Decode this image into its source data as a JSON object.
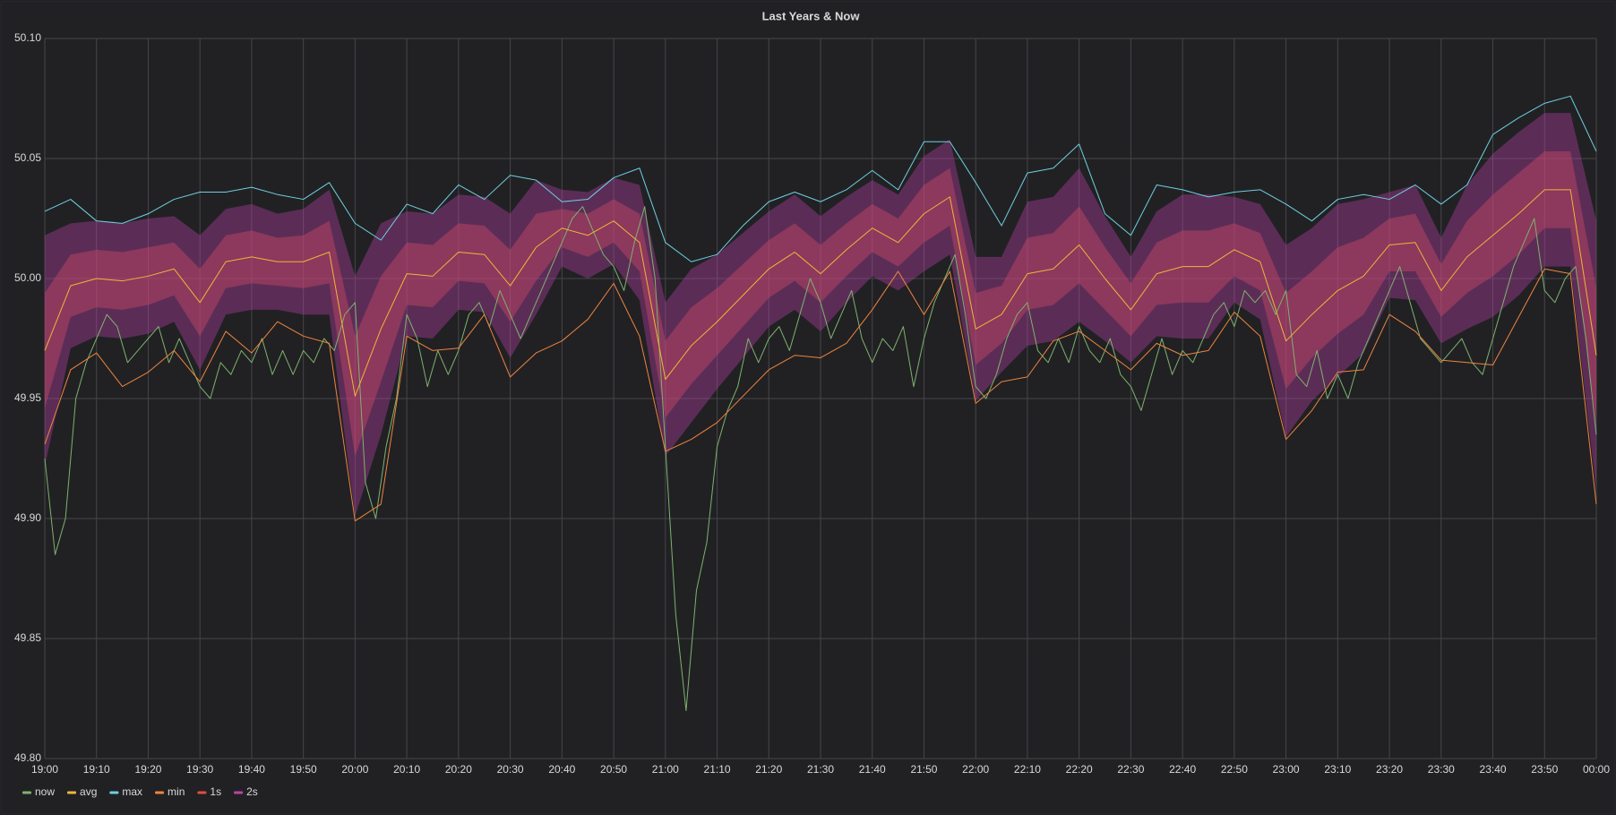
{
  "chart_data": {
    "type": "line",
    "title": "Last Years & Now",
    "xlim": [
      "19:00",
      "00:00"
    ],
    "xticks": [
      "19:00",
      "19:10",
      "19:20",
      "19:30",
      "19:40",
      "19:50",
      "20:00",
      "20:10",
      "20:20",
      "20:30",
      "20:40",
      "20:50",
      "21:00",
      "21:10",
      "21:20",
      "21:30",
      "21:40",
      "21:50",
      "22:00",
      "22:10",
      "22:20",
      "22:30",
      "22:40",
      "22:50",
      "23:00",
      "23:10",
      "23:20",
      "23:30",
      "23:40",
      "23:50",
      "00:00"
    ],
    "ylim": [
      49.8,
      50.1
    ],
    "yticks": [
      {
        "value": 49.8,
        "label": "49.80"
      },
      49.85,
      {
        "value": 49.9,
        "label": "49.90"
      },
      49.95,
      {
        "value": 50.0,
        "label": "50.00"
      },
      50.05,
      {
        "value": 50.1,
        "label": "50.10"
      }
    ],
    "grid": true,
    "legend": "bottom-left",
    "x": [
      "19:00",
      "19:05",
      "19:10",
      "19:15",
      "19:20",
      "19:25",
      "19:30",
      "19:35",
      "19:40",
      "19:45",
      "19:50",
      "19:55",
      "20:00",
      "20:05",
      "20:10",
      "20:15",
      "20:20",
      "20:25",
      "20:30",
      "20:35",
      "20:40",
      "20:45",
      "20:50",
      "20:55",
      "21:00",
      "21:05",
      "21:10",
      "21:15",
      "21:20",
      "21:25",
      "21:30",
      "21:35",
      "21:40",
      "21:45",
      "21:50",
      "21:55",
      "22:00",
      "22:05",
      "22:10",
      "22:15",
      "22:20",
      "22:25",
      "22:30",
      "22:35",
      "22:40",
      "22:45",
      "22:50",
      "22:55",
      "23:00",
      "23:05",
      "23:10",
      "23:15",
      "23:20",
      "23:25",
      "23:30",
      "23:35",
      "23:40",
      "23:45",
      "23:50",
      "23:55",
      "00:00"
    ],
    "series": [
      {
        "name": "now",
        "color": "#7eb26d",
        "x": [
          "19:00",
          "19:02",
          "19:04",
          "19:06",
          "19:08",
          "19:10",
          "19:12",
          "19:14",
          "19:16",
          "19:18",
          "19:20",
          "19:22",
          "19:24",
          "19:26",
          "19:28",
          "19:30",
          "19:32",
          "19:34",
          "19:36",
          "19:38",
          "19:40",
          "19:42",
          "19:44",
          "19:46",
          "19:48",
          "19:50",
          "19:52",
          "19:54",
          "19:56",
          "19:58",
          "20:00",
          "20:02",
          "20:04",
          "20:06",
          "20:08",
          "20:10",
          "20:12",
          "20:14",
          "20:16",
          "20:18",
          "20:20",
          "20:22",
          "20:24",
          "20:26",
          "20:28",
          "20:30",
          "20:32",
          "20:34",
          "20:36",
          "20:38",
          "20:40",
          "20:42",
          "20:44",
          "20:46",
          "20:48",
          "20:50",
          "20:52",
          "20:54",
          "20:56",
          "20:58",
          "21:00",
          "21:02",
          "21:04",
          "21:06",
          "21:08",
          "21:10",
          "21:12",
          "21:14",
          "21:16",
          "21:18",
          "21:20",
          "21:22",
          "21:24",
          "21:26",
          "21:28",
          "21:30",
          "21:32",
          "21:34",
          "21:36",
          "21:38",
          "21:40",
          "21:42",
          "21:44",
          "21:46",
          "21:48",
          "21:50",
          "21:52",
          "21:54",
          "21:56",
          "21:58",
          "22:00",
          "22:02",
          "22:04",
          "22:06",
          "22:08",
          "22:10",
          "22:12",
          "22:14",
          "22:16",
          "22:18",
          "22:20",
          "22:22",
          "22:24",
          "22:26",
          "22:28",
          "22:30",
          "22:32",
          "22:34",
          "22:36",
          "22:38",
          "22:40",
          "22:42",
          "22:44",
          "22:46",
          "22:48",
          "22:50",
          "22:52",
          "22:54",
          "22:56",
          "22:58",
          "23:00",
          "23:02",
          "23:04",
          "23:06",
          "23:08",
          "23:10",
          "23:12",
          "23:14",
          "23:16",
          "23:18",
          "23:20",
          "23:22",
          "23:24",
          "23:26",
          "23:28",
          "23:30",
          "23:32",
          "23:34",
          "23:36",
          "23:38",
          "23:40",
          "23:42",
          "23:44",
          "23:46",
          "23:48",
          "23:50",
          "23:52",
          "23:54",
          "23:56",
          "23:58",
          "00:00"
        ],
        "values": [
          49.925,
          49.885,
          49.9,
          49.95,
          49.965,
          49.975,
          49.985,
          49.98,
          49.965,
          49.97,
          49.975,
          49.98,
          49.965,
          49.975,
          49.965,
          49.955,
          49.95,
          49.965,
          49.96,
          49.97,
          49.965,
          49.975,
          49.96,
          49.97,
          49.96,
          49.97,
          49.965,
          49.975,
          49.97,
          49.985,
          49.99,
          49.915,
          49.9,
          49.93,
          49.95,
          49.985,
          49.975,
          49.955,
          49.97,
          49.96,
          49.97,
          49.985,
          49.99,
          49.98,
          49.995,
          49.985,
          49.975,
          49.985,
          49.995,
          50.005,
          50.015,
          50.025,
          50.03,
          50.02,
          50.01,
          50.005,
          49.995,
          50.015,
          50.03,
          50.0,
          49.93,
          49.86,
          49.82,
          49.87,
          49.89,
          49.93,
          49.945,
          49.955,
          49.975,
          49.965,
          49.975,
          49.98,
          49.97,
          49.985,
          50.0,
          49.99,
          49.975,
          49.985,
          49.995,
          49.975,
          49.965,
          49.975,
          49.97,
          49.98,
          49.955,
          49.975,
          49.99,
          50.0,
          50.01,
          49.985,
          49.955,
          49.95,
          49.96,
          49.975,
          49.985,
          49.99,
          49.97,
          49.965,
          49.975,
          49.965,
          49.98,
          49.97,
          49.965,
          49.975,
          49.96,
          49.955,
          49.945,
          49.96,
          49.975,
          49.96,
          49.97,
          49.965,
          49.975,
          49.985,
          49.99,
          49.98,
          49.995,
          49.99,
          49.995,
          49.985,
          49.995,
          49.96,
          49.955,
          49.97,
          49.95,
          49.96,
          49.95,
          49.965,
          49.975,
          49.985,
          49.995,
          50.005,
          49.99,
          49.975,
          49.97,
          49.965,
          49.97,
          49.975,
          49.965,
          49.96,
          49.975,
          49.99,
          50.005,
          50.015,
          50.025,
          49.995,
          49.99,
          50.0,
          50.005,
          49.975,
          49.935
        ]
      },
      {
        "name": "avg",
        "color": "#eab839",
        "values": [
          49.97,
          49.997,
          50.0,
          49.999,
          50.001,
          50.004,
          49.99,
          50.007,
          50.009,
          50.007,
          50.007,
          50.011,
          49.951,
          49.979,
          50.002,
          50.001,
          50.011,
          50.01,
          49.997,
          50.013,
          50.021,
          50.018,
          50.024,
          50.015,
          49.958,
          49.972,
          49.982,
          49.993,
          50.004,
          50.011,
          50.002,
          50.012,
          50.021,
          50.015,
          50.027,
          50.034,
          49.979,
          49.985,
          50.002,
          50.004,
          50.014,
          50.0,
          49.987,
          50.002,
          50.005,
          50.005,
          50.012,
          50.007,
          49.974,
          49.985,
          49.995,
          50.001,
          50.014,
          50.015,
          49.995,
          50.009,
          50.018,
          50.027,
          50.037,
          50.037,
          49.968
        ]
      },
      {
        "name": "max",
        "color": "#6ed0e0",
        "values": [
          50.028,
          50.033,
          50.024,
          50.023,
          50.027,
          50.033,
          50.036,
          50.036,
          50.038,
          50.035,
          50.033,
          50.04,
          50.023,
          50.016,
          50.031,
          50.027,
          50.039,
          50.033,
          50.043,
          50.041,
          50.032,
          50.033,
          50.042,
          50.046,
          50.015,
          50.007,
          50.01,
          50.022,
          50.032,
          50.036,
          50.032,
          50.037,
          50.045,
          50.037,
          50.057,
          50.057,
          50.04,
          50.022,
          50.044,
          50.046,
          50.056,
          50.027,
          50.018,
          50.039,
          50.037,
          50.034,
          50.036,
          50.037,
          50.031,
          50.024,
          50.033,
          50.035,
          50.033,
          50.039,
          50.031,
          50.039,
          50.06,
          50.067,
          50.073,
          50.076,
          50.053
        ]
      },
      {
        "name": "min",
        "color": "#ef843c",
        "values": [
          49.931,
          49.962,
          49.969,
          49.955,
          49.961,
          49.97,
          49.957,
          49.978,
          49.969,
          49.982,
          49.976,
          49.973,
          49.899,
          49.906,
          49.976,
          49.97,
          49.971,
          49.985,
          49.959,
          49.969,
          49.974,
          49.983,
          49.998,
          49.976,
          49.928,
          49.933,
          49.94,
          49.951,
          49.962,
          49.968,
          49.967,
          49.973,
          49.987,
          50.003,
          49.985,
          50.003,
          49.948,
          49.957,
          49.959,
          49.974,
          49.978,
          49.97,
          49.962,
          49.973,
          49.968,
          49.97,
          49.986,
          49.976,
          49.933,
          49.945,
          49.961,
          49.962,
          49.985,
          49.978,
          49.966,
          49.965,
          49.964,
          49.984,
          50.004,
          50.002,
          49.906
        ]
      },
      {
        "name": "1s",
        "color": "#e24d42",
        "upper": [
          49.994,
          50.01,
          50.012,
          50.011,
          50.013,
          50.015,
          50.004,
          50.018,
          50.02,
          50.017,
          50.018,
          50.024,
          49.976,
          50.001,
          50.015,
          50.014,
          50.023,
          50.022,
          50.012,
          50.027,
          50.029,
          50.027,
          50.033,
          50.027,
          49.974,
          49.988,
          49.996,
          50.006,
          50.016,
          50.023,
          50.014,
          50.023,
          50.031,
          50.025,
          50.039,
          50.046,
          49.994,
          49.997,
          50.017,
          50.019,
          50.03,
          50.013,
          49.998,
          50.015,
          50.02,
          50.02,
          50.023,
          50.019,
          49.994,
          50.003,
          50.013,
          50.017,
          50.025,
          50.027,
          50.006,
          50.024,
          50.035,
          50.044,
          50.053,
          50.053,
          49.996
        ],
        "lower": [
          49.946,
          49.984,
          49.988,
          49.987,
          49.989,
          49.993,
          49.976,
          49.996,
          49.998,
          49.997,
          49.996,
          49.998,
          49.926,
          49.957,
          49.989,
          49.988,
          49.999,
          49.998,
          49.982,
          49.999,
          50.013,
          50.009,
          50.015,
          50.003,
          49.942,
          49.956,
          49.968,
          49.98,
          49.992,
          49.999,
          49.99,
          50.001,
          50.011,
          50.005,
          50.015,
          50.022,
          49.964,
          49.973,
          49.987,
          49.989,
          49.998,
          49.987,
          49.976,
          49.989,
          49.99,
          49.99,
          50.001,
          49.995,
          49.954,
          49.967,
          49.977,
          49.985,
          50.003,
          50.003,
          49.984,
          49.994,
          50.001,
          50.01,
          50.021,
          50.021,
          49.94
        ]
      },
      {
        "name": "2s",
        "color": "#ba43a9",
        "upper": [
          50.018,
          50.023,
          50.024,
          50.023,
          50.025,
          50.026,
          50.018,
          50.029,
          50.031,
          50.027,
          50.029,
          50.037,
          50.001,
          50.023,
          50.028,
          50.027,
          50.035,
          50.034,
          50.027,
          50.041,
          50.037,
          50.036,
          50.042,
          50.039,
          49.99,
          50.004,
          50.01,
          50.019,
          50.028,
          50.035,
          50.026,
          50.034,
          50.041,
          50.035,
          50.051,
          50.058,
          50.009,
          50.009,
          50.032,
          50.034,
          50.046,
          50.026,
          50.009,
          50.028,
          50.035,
          50.035,
          50.034,
          50.031,
          50.014,
          50.021,
          50.031,
          50.033,
          50.036,
          50.039,
          50.017,
          50.039,
          50.052,
          50.061,
          50.069,
          50.069,
          50.024
        ],
        "lower": [
          49.922,
          49.971,
          49.976,
          49.975,
          49.977,
          49.982,
          49.962,
          49.985,
          49.987,
          49.987,
          49.985,
          49.985,
          49.901,
          49.935,
          49.976,
          49.975,
          49.987,
          49.986,
          49.967,
          49.985,
          50.005,
          50.0,
          50.006,
          49.991,
          49.926,
          49.94,
          49.954,
          49.967,
          49.98,
          49.987,
          49.978,
          49.99,
          50.001,
          49.995,
          50.003,
          50.01,
          49.949,
          49.961,
          49.972,
          49.974,
          49.982,
          49.974,
          49.965,
          49.976,
          49.975,
          49.975,
          49.99,
          49.983,
          49.934,
          49.949,
          49.959,
          49.969,
          49.992,
          49.991,
          49.973,
          49.979,
          49.984,
          49.993,
          50.005,
          50.005,
          49.912
        ]
      }
    ]
  }
}
